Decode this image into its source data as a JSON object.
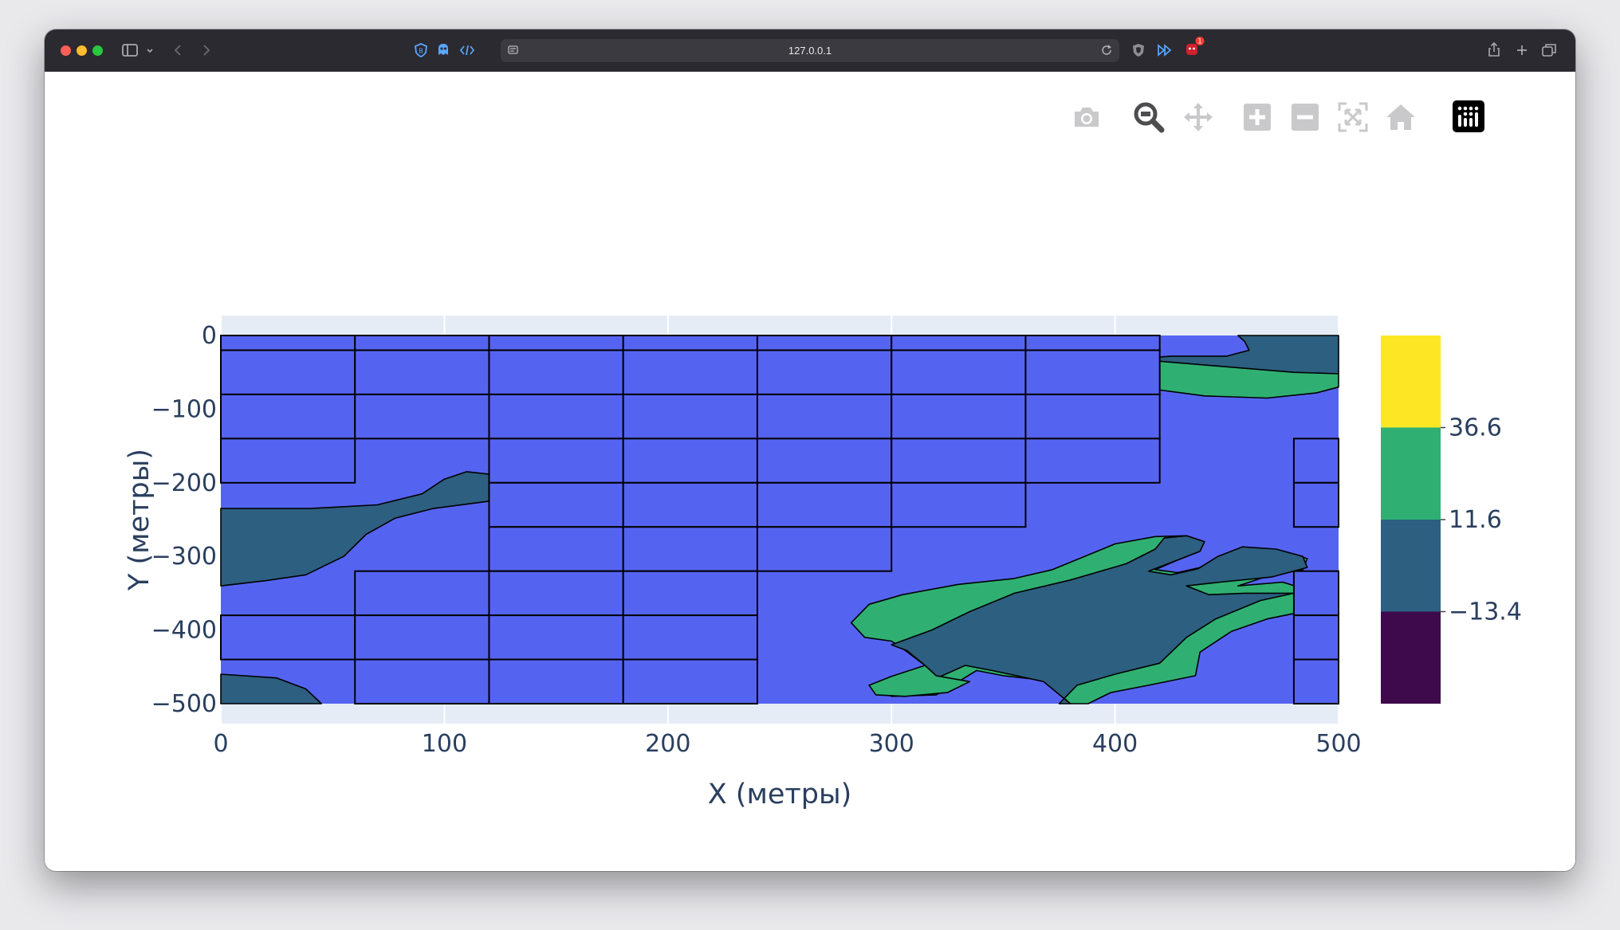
{
  "browser": {
    "url": "127.0.0.1",
    "colors": {
      "chrome": "#2b2a30",
      "urlbar": "#3b3a40"
    },
    "icons": [
      "sidebar-icon",
      "chevron-down-icon",
      "back-icon",
      "forward-icon",
      "shield-icon",
      "ghost-icon",
      "code-icon",
      "page-icon",
      "reload-icon",
      "brave-shield-icon",
      "fast-forward-icon",
      "notification-icon",
      "share-icon",
      "new-tab-icon",
      "tabs-overview-icon"
    ],
    "notification_count": "1"
  },
  "modebar": {
    "icons": [
      "camera-icon",
      "zoom-icon",
      "pan-icon",
      "zoom-in-icon",
      "zoom-out-icon",
      "autoscale-icon",
      "home-icon",
      "plotly-logo-icon"
    ],
    "active": "zoom-icon"
  },
  "chart_data": {
    "type": "heatmap",
    "subtype": "contour-with-block-overlay",
    "xlabel": "X (метры)",
    "ylabel": "Y (метры)",
    "xlim": [
      0,
      500
    ],
    "ylim": [
      -500,
      0
    ],
    "x_ticks": [
      0,
      100,
      200,
      300,
      400,
      500
    ],
    "x_tick_labels": [
      "0",
      "100",
      "200",
      "300",
      "400",
      "500"
    ],
    "y_ticks": [
      0,
      -100,
      -200,
      -300,
      -400,
      -500
    ],
    "y_tick_labels": [
      "0",
      "−100",
      "−200",
      "−300",
      "−400",
      "−500"
    ],
    "grid": true,
    "background_color": "#e5ecf6",
    "contour_levels": [
      -13.4,
      11.6,
      36.6
    ],
    "colorbar": {
      "ticks": [
        36.6,
        11.6,
        -13.4
      ],
      "tick_labels": [
        "36.6",
        "11.6",
        "−13.4"
      ],
      "bands": [
        {
          "from": 36.6,
          "to": 61.6,
          "color": "#fde725"
        },
        {
          "from": 11.6,
          "to": 36.6,
          "color": "#2fb072"
        },
        {
          "from": -13.4,
          "to": 11.6,
          "color": "#2c5f80"
        },
        {
          "from": -38.4,
          "to": -13.4,
          "color": "#3e0a4c"
        }
      ]
    },
    "block_fill_color": "#5564f0",
    "regions": [
      {
        "color": "#2c5f80",
        "points": [
          [
            0,
            -235
          ],
          [
            40,
            -235
          ],
          [
            70,
            -230
          ],
          [
            90,
            -215
          ],
          [
            100,
            -195
          ],
          [
            110,
            -185
          ],
          [
            125,
            -190
          ],
          [
            134,
            -205
          ],
          [
            120,
            -225
          ],
          [
            95,
            -235
          ],
          [
            78,
            -248
          ],
          [
            65,
            -270
          ],
          [
            55,
            -300
          ],
          [
            38,
            -325
          ],
          [
            20,
            -333
          ],
          [
            0,
            -340
          ]
        ]
      },
      {
        "color": "#2c5f80",
        "points": [
          [
            0,
            -460
          ],
          [
            25,
            -465
          ],
          [
            38,
            -480
          ],
          [
            45,
            -500
          ],
          [
            0,
            -500
          ]
        ]
      },
      {
        "color": "#2fb072",
        "points": [
          [
            395,
            -35
          ],
          [
            425,
            -30
          ],
          [
            455,
            -35
          ],
          [
            480,
            -45
          ],
          [
            500,
            -52
          ],
          [
            500,
            -70
          ],
          [
            490,
            -78
          ],
          [
            468,
            -85
          ],
          [
            440,
            -82
          ],
          [
            415,
            -72
          ],
          [
            398,
            -58
          ],
          [
            391,
            -45
          ]
        ]
      },
      {
        "color": "#2c5f80",
        "points": [
          [
            455,
            0
          ],
          [
            500,
            0
          ],
          [
            500,
            -52
          ],
          [
            480,
            -50
          ],
          [
            456,
            -44
          ],
          [
            428,
            -37
          ],
          [
            408,
            -32
          ],
          [
            425,
            -28
          ],
          [
            450,
            -28
          ],
          [
            460,
            -20
          ],
          [
            458,
            -8
          ]
        ]
      },
      {
        "color": "#2fb072",
        "points": [
          [
            282,
            -390
          ],
          [
            290,
            -365
          ],
          [
            305,
            -352
          ],
          [
            330,
            -338
          ],
          [
            355,
            -330
          ],
          [
            372,
            -318
          ],
          [
            388,
            -298
          ],
          [
            400,
            -283
          ],
          [
            418,
            -273
          ],
          [
            432,
            -272
          ],
          [
            440,
            -280
          ],
          [
            438,
            -293
          ],
          [
            428,
            -305
          ],
          [
            418,
            -318
          ],
          [
            428,
            -322
          ],
          [
            438,
            -315
          ],
          [
            448,
            -298
          ],
          [
            460,
            -288
          ],
          [
            475,
            -293
          ],
          [
            486,
            -303
          ],
          [
            484,
            -318
          ],
          [
            468,
            -327
          ],
          [
            455,
            -340
          ],
          [
            475,
            -335
          ],
          [
            493,
            -352
          ],
          [
            489,
            -372
          ],
          [
            468,
            -385
          ],
          [
            452,
            -402
          ],
          [
            438,
            -430
          ],
          [
            436,
            -462
          ],
          [
            415,
            -475
          ],
          [
            398,
            -485
          ],
          [
            388,
            -500
          ],
          [
            380,
            -500
          ],
          [
            368,
            -468
          ],
          [
            350,
            -462
          ],
          [
            338,
            -455
          ],
          [
            330,
            -470
          ],
          [
            320,
            -488
          ],
          [
            300,
            -490
          ],
          [
            292,
            -475
          ],
          [
            307,
            -460
          ],
          [
            315,
            -448
          ],
          [
            305,
            -425
          ],
          [
            300,
            -415
          ],
          [
            288,
            -410
          ]
        ]
      },
      {
        "color": "#2c5f80",
        "points": [
          [
            300,
            -420
          ],
          [
            318,
            -400
          ],
          [
            335,
            -375
          ],
          [
            355,
            -350
          ],
          [
            380,
            -332
          ],
          [
            405,
            -310
          ],
          [
            418,
            -290
          ],
          [
            422,
            -275
          ],
          [
            432,
            -272
          ],
          [
            440,
            -280
          ],
          [
            438,
            -293
          ],
          [
            428,
            -305
          ],
          [
            415,
            -320
          ],
          [
            425,
            -325
          ],
          [
            437,
            -317
          ],
          [
            446,
            -300
          ],
          [
            457,
            -287
          ],
          [
            472,
            -290
          ],
          [
            484,
            -300
          ],
          [
            486,
            -315
          ],
          [
            470,
            -328
          ],
          [
            447,
            -335
          ],
          [
            432,
            -340
          ],
          [
            442,
            -352
          ],
          [
            458,
            -350
          ],
          [
            480,
            -350
          ],
          [
            465,
            -360
          ],
          [
            445,
            -385
          ],
          [
            432,
            -410
          ],
          [
            420,
            -445
          ],
          [
            400,
            -460
          ],
          [
            383,
            -475
          ],
          [
            375,
            -500
          ],
          [
            380,
            -500
          ],
          [
            368,
            -470
          ],
          [
            356,
            -462
          ],
          [
            345,
            -455
          ],
          [
            333,
            -448
          ],
          [
            322,
            -463
          ],
          [
            312,
            -465
          ],
          [
            315,
            -448
          ],
          [
            307,
            -428
          ]
        ]
      },
      {
        "color": "#2fb072",
        "points": [
          [
            315,
            -448
          ],
          [
            320,
            -462
          ],
          [
            335,
            -470
          ],
          [
            325,
            -485
          ],
          [
            306,
            -490
          ],
          [
            293,
            -488
          ],
          [
            290,
            -475
          ],
          [
            300,
            -463
          ]
        ]
      }
    ],
    "blocks": [
      {
        "x0": 0,
        "x1": 60,
        "y0": -20,
        "y1": 0
      },
      {
        "x0": 0,
        "x1": 60,
        "y0": -80,
        "y1": -20
      },
      {
        "x0": 0,
        "x1": 60,
        "y0": -140,
        "y1": -80
      },
      {
        "x0": 0,
        "x1": 60,
        "y0": -200,
        "y1": -140
      },
      {
        "x0": 60,
        "x1": 120,
        "y0": -20,
        "y1": 0
      },
      {
        "x0": 60,
        "x1": 120,
        "y0": -80,
        "y1": -20
      },
      {
        "x0": 60,
        "x1": 120,
        "y0": -140,
        "y1": -80
      },
      {
        "x0": 120,
        "x1": 180,
        "y0": -20,
        "y1": 0
      },
      {
        "x0": 120,
        "x1": 180,
        "y0": -80,
        "y1": -20
      },
      {
        "x0": 120,
        "x1": 180,
        "y0": -140,
        "y1": -80
      },
      {
        "x0": 120,
        "x1": 180,
        "y0": -200,
        "y1": -140
      },
      {
        "x0": 120,
        "x1": 180,
        "y0": -260,
        "y1": -200
      },
      {
        "x0": 120,
        "x1": 180,
        "y0": -320,
        "y1": -260
      },
      {
        "x0": 180,
        "x1": 240,
        "y0": -20,
        "y1": 0
      },
      {
        "x0": 180,
        "x1": 240,
        "y0": -80,
        "y1": -20
      },
      {
        "x0": 180,
        "x1": 240,
        "y0": -140,
        "y1": -80
      },
      {
        "x0": 180,
        "x1": 240,
        "y0": -200,
        "y1": -140
      },
      {
        "x0": 180,
        "x1": 240,
        "y0": -260,
        "y1": -200
      },
      {
        "x0": 180,
        "x1": 240,
        "y0": -320,
        "y1": -260
      },
      {
        "x0": 240,
        "x1": 300,
        "y0": -20,
        "y1": 0
      },
      {
        "x0": 240,
        "x1": 300,
        "y0": -80,
        "y1": -20
      },
      {
        "x0": 240,
        "x1": 300,
        "y0": -140,
        "y1": -80
      },
      {
        "x0": 240,
        "x1": 300,
        "y0": -200,
        "y1": -140
      },
      {
        "x0": 240,
        "x1": 300,
        "y0": -260,
        "y1": -200
      },
      {
        "x0": 240,
        "x1": 300,
        "y0": -320,
        "y1": -260
      },
      {
        "x0": 300,
        "x1": 360,
        "y0": -20,
        "y1": 0
      },
      {
        "x0": 300,
        "x1": 360,
        "y0": -80,
        "y1": -20
      },
      {
        "x0": 300,
        "x1": 360,
        "y0": -140,
        "y1": -80
      },
      {
        "x0": 300,
        "x1": 360,
        "y0": -200,
        "y1": -140
      },
      {
        "x0": 300,
        "x1": 360,
        "y0": -260,
        "y1": -200
      },
      {
        "x0": 360,
        "x1": 420,
        "y0": -20,
        "y1": 0
      },
      {
        "x0": 360,
        "x1": 420,
        "y0": -80,
        "y1": -20
      },
      {
        "x0": 360,
        "x1": 420,
        "y0": -140,
        "y1": -80
      },
      {
        "x0": 360,
        "x1": 420,
        "y0": -200,
        "y1": -140
      },
      {
        "x0": 0,
        "x1": 60,
        "y0": -440,
        "y1": -380
      },
      {
        "x0": 60,
        "x1": 120,
        "y0": -380,
        "y1": -320
      },
      {
        "x0": 60,
        "x1": 120,
        "y0": -440,
        "y1": -380
      },
      {
        "x0": 60,
        "x1": 120,
        "y0": -500,
        "y1": -440
      },
      {
        "x0": 120,
        "x1": 180,
        "y0": -380,
        "y1": -320
      },
      {
        "x0": 120,
        "x1": 180,
        "y0": -440,
        "y1": -380
      },
      {
        "x0": 120,
        "x1": 180,
        "y0": -500,
        "y1": -440
      },
      {
        "x0": 180,
        "x1": 240,
        "y0": -380,
        "y1": -320
      },
      {
        "x0": 180,
        "x1": 240,
        "y0": -440,
        "y1": -380
      },
      {
        "x0": 180,
        "x1": 240,
        "y0": -500,
        "y1": -440
      },
      {
        "x0": 480,
        "x1": 500,
        "y0": -200,
        "y1": -140
      },
      {
        "x0": 480,
        "x1": 500,
        "y0": -260,
        "y1": -200
      },
      {
        "x0": 480,
        "x1": 500,
        "y0": -380,
        "y1": -320
      },
      {
        "x0": 480,
        "x1": 500,
        "y0": -440,
        "y1": -380
      },
      {
        "x0": 480,
        "x1": 500,
        "y0": -500,
        "y1": -440
      }
    ]
  }
}
